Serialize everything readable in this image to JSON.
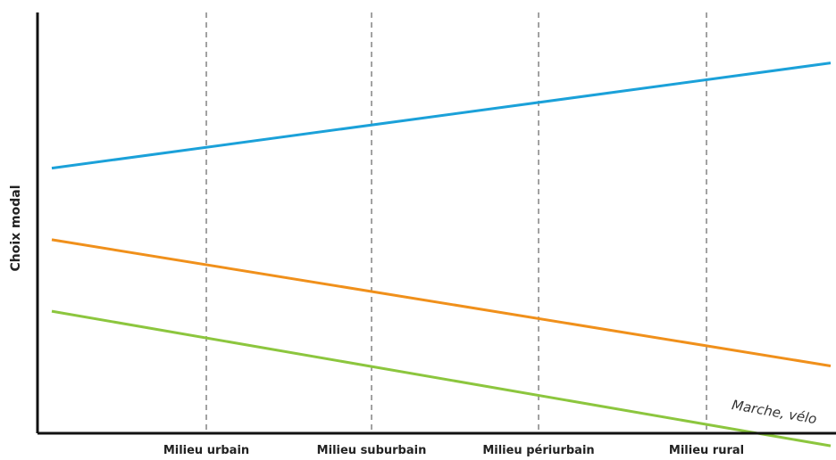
{
  "chart_data": {
    "type": "line",
    "ylabel": "Choix modal",
    "xlabel": "",
    "categories": [
      "Milieu urbain",
      "Milieu suburbain",
      "Milieu périurbain",
      "Milieu rural"
    ],
    "x_range": [
      0,
      5
    ],
    "ylim": [
      0,
      100
    ],
    "grid": "vertical dashed lines at categories",
    "series": [
      {
        "values_at_edges": [
          63,
          88
        ],
        "color": "#1ba1d9"
      },
      {
        "values_at_edges": [
          46,
          16
        ],
        "color": "#f0901b"
      },
      {
        "name": "Marche, vélo",
        "values_at_edges": [
          29,
          -3
        ],
        "color": "#8cc63e"
      }
    ],
    "annotations": [
      {
        "text": "Marche, vélo",
        "series_index": 2
      }
    ]
  }
}
